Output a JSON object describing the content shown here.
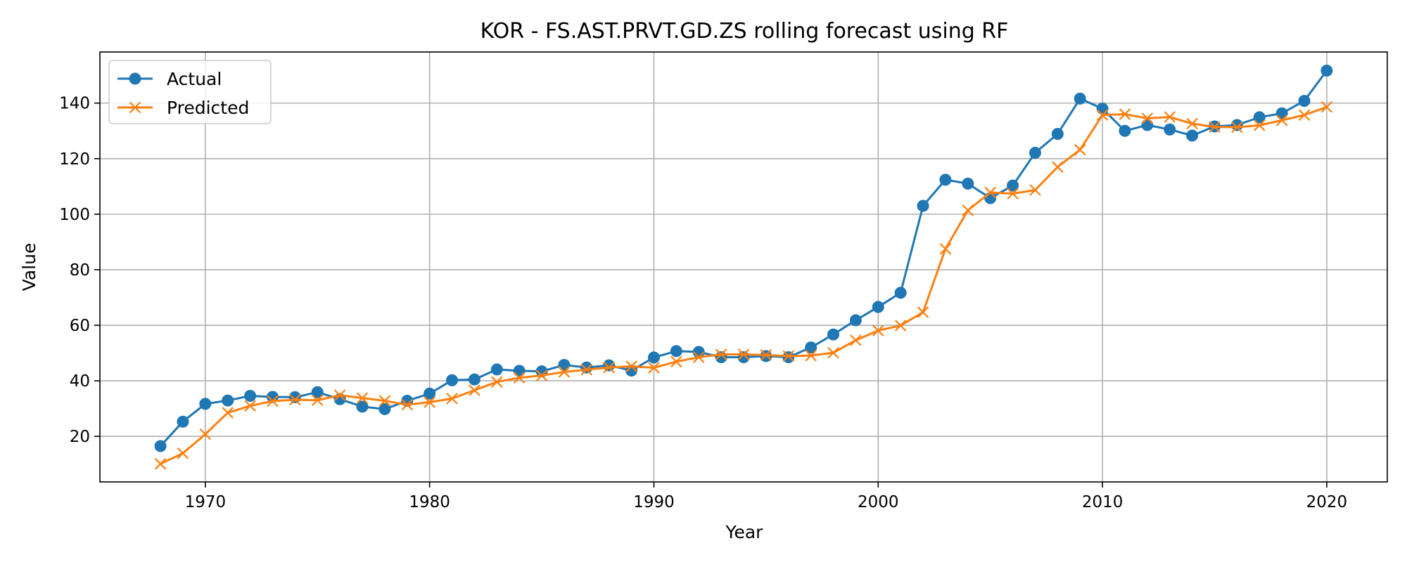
{
  "chart_data": {
    "type": "line",
    "title": "KOR - FS.AST.PRVT.GD.ZS rolling forecast using RF",
    "xlabel": "Year",
    "ylabel": "Value",
    "xlim": [
      1965.3,
      2022.7
    ],
    "ylim": [
      3.6,
      158.4
    ],
    "xticks": [
      1970,
      1980,
      1990,
      2000,
      2010,
      2020
    ],
    "yticks": [
      20,
      40,
      60,
      80,
      100,
      120,
      140
    ],
    "grid": true,
    "legend": "top-left",
    "x": [
      1968,
      1969,
      1970,
      1971,
      1972,
      1973,
      1974,
      1975,
      1976,
      1977,
      1978,
      1979,
      1980,
      1981,
      1982,
      1983,
      1984,
      1985,
      1986,
      1987,
      1988,
      1989,
      1990,
      1991,
      1992,
      1993,
      1994,
      1995,
      1996,
      1997,
      1998,
      1999,
      2000,
      2001,
      2002,
      2003,
      2004,
      2005,
      2006,
      2007,
      2008,
      2009,
      2010,
      2011,
      2012,
      2013,
      2014,
      2015,
      2016,
      2017,
      2018,
      2019,
      2020
    ],
    "series": [
      {
        "name": "Actual",
        "color": "#1f77b4",
        "marker": "circle",
        "values": [
          16.5,
          25.3,
          31.7,
          32.9,
          34.6,
          34.2,
          34.1,
          35.9,
          33.4,
          30.7,
          29.8,
          32.8,
          35.4,
          40.2,
          40.5,
          44.1,
          43.6,
          43.4,
          45.7,
          44.8,
          45.6,
          43.7,
          48.4,
          50.7,
          50.4,
          48.5,
          48.5,
          48.9,
          48.5,
          52.0,
          56.7,
          61.8,
          66.6,
          71.7,
          103.0,
          112.4,
          111.0,
          105.8,
          110.3,
          122.1,
          128.9,
          141.6,
          138.0,
          130.0,
          132.1,
          130.5,
          128.3,
          131.6,
          132.1,
          134.9,
          136.3,
          140.8,
          151.7
        ]
      },
      {
        "name": "Predicted",
        "color": "#ff7f0e",
        "marker": "x",
        "values": [
          10.1,
          13.9,
          20.8,
          28.5,
          31.0,
          32.7,
          33.2,
          33.0,
          34.8,
          33.8,
          32.8,
          31.4,
          32.3,
          33.6,
          36.6,
          39.6,
          41.1,
          41.9,
          43.2,
          44.0,
          44.8,
          45.2,
          44.7,
          46.9,
          48.5,
          49.5,
          49.5,
          49.3,
          48.9,
          49.1,
          50.1,
          54.6,
          58.1,
          59.9,
          64.7,
          87.5,
          101.4,
          107.8,
          107.4,
          108.7,
          117.0,
          123.2,
          135.7,
          136.0,
          134.5,
          135.0,
          132.6,
          131.4,
          131.3,
          132.0,
          133.8,
          135.7,
          138.6
        ]
      }
    ]
  }
}
